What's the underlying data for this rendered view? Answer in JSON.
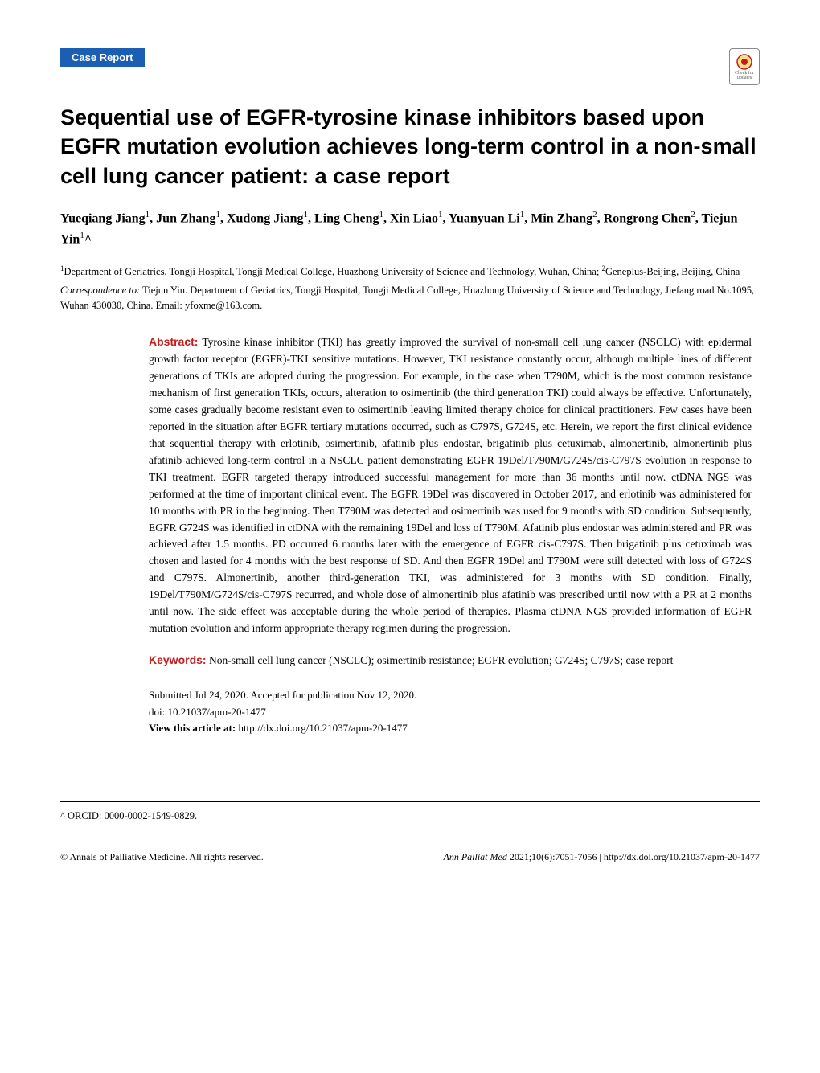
{
  "badge": "Case Report",
  "check_updates_label": "Check for updates",
  "title": "Sequential use of EGFR-tyrosine kinase inhibitors based upon EGFR mutation evolution achieves long-term control in a non-small cell lung cancer patient: a case report",
  "authors_html": "Yueqiang Jiang<sup>1</sup>, Jun Zhang<sup>1</sup>, Xudong Jiang<sup>1</sup>, Ling Cheng<sup>1</sup>, Xin Liao<sup>1</sup>, Yuanyuan Li<sup>1</sup>, Min Zhang<sup>2</sup>, Rongrong Chen<sup>2</sup>, Tiejun Yin<sup>1</sup>^",
  "affiliations_html": "<sup>1</sup>Department of Geriatrics, Tongji Hospital, Tongji Medical College, Huazhong University of Science and Technology, Wuhan, China; <sup>2</sup>Geneplus-Beijing, Beijing, China",
  "correspondence_label": "Correspondence to:",
  "correspondence_text": " Tiejun Yin. Department of Geriatrics, Tongji Hospital, Tongji Medical College, Huazhong University of Science and Technology, Jiefang road No.1095, Wuhan 430030, China. Email: yfoxme@163.com.",
  "abstract_label": "Abstract:",
  "abstract_text": " Tyrosine kinase inhibitor (TKI) has greatly improved the survival of non-small cell lung cancer (NSCLC) with epidermal growth factor receptor (EGFR)-TKI sensitive mutations. However, TKI resistance constantly occur, although multiple lines of different generations of TKIs are adopted during the progression. For example, in the case when T790M, which is the most common resistance mechanism of first generation TKIs, occurs, alteration to osimertinib (the third generation TKI) could always be effective. Unfortunately, some cases gradually become resistant even to osimertinib leaving limited therapy choice for clinical practitioners. Few cases have been reported in the situation after EGFR tertiary mutations occurred, such as C797S, G724S, etc. Herein, we report the first clinical evidence that sequential therapy with erlotinib, osimertinib, afatinib plus endostar, brigatinib plus cetuximab, almonertinib, almonertinib plus afatinib achieved long-term control in a NSCLC patient demonstrating EGFR 19Del/T790M/G724S/cis-C797S evolution in response to TKI treatment. EGFR targeted therapy introduced successful management for more than 36 months until now. ctDNA NGS was performed at the time of important clinical event. The EGFR 19Del was discovered in October 2017, and erlotinib was administered for 10 months with PR in the beginning. Then T790M was detected and osimertinib was used for 9 months with SD condition. Subsequently, EGFR G724S was identified in ctDNA with the remaining 19Del and loss of T790M. Afatinib plus endostar was administered and PR was achieved after 1.5 months. PD occurred 6 months later with the emergence of EGFR cis-C797S. Then brigatinib plus cetuximab was chosen and lasted for 4 months with the best response of SD. And then EGFR 19Del and T790M were still detected with loss of G724S and C797S. Almonertinib, another third-generation TKI, was administered for 3 months with SD condition. Finally, 19Del/T790M/G724S/cis-C797S recurred, and whole dose of almonertinib plus afatinib was prescribed until now with a PR at 2 months until now. The side effect was acceptable during the whole period of therapies. Plasma ctDNA NGS provided information of EGFR mutation evolution and inform appropriate therapy regimen during the progression.",
  "keywords_label": "Keywords:",
  "keywords_text": " Non-small cell lung cancer (NSCLC); osimertinib resistance; EGFR evolution; G724S; C797S; case report",
  "submitted": "Submitted Jul 24, 2020. Accepted for publication Nov 12, 2020.",
  "doi": "doi: 10.21037/apm-20-1477",
  "view_label": "View this article at:",
  "view_url": " http://dx.doi.org/10.21037/apm-20-1477",
  "orcid": "^ ORCID: 0000-0002-1549-0829.",
  "footer_left": "© Annals of Palliative Medicine. All rights reserved.",
  "footer_journal": "Ann Palliat Med",
  "footer_issue": " 2021;10(6):7051-7056 | http://dx.doi.org/10.21037/apm-20-1477",
  "colors": {
    "badge_bg": "#1a5fb4",
    "section_label": "#c71c1c",
    "text": "#000000",
    "bg": "#ffffff"
  }
}
